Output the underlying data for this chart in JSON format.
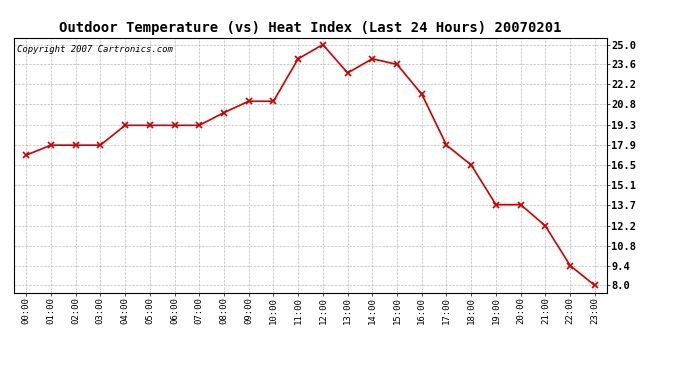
{
  "title": "Outdoor Temperature (vs) Heat Index (Last 24 Hours) 20070201",
  "copyright": "Copyright 2007 Cartronics.com",
  "x_labels": [
    "00:00",
    "01:00",
    "02:00",
    "03:00",
    "04:00",
    "05:00",
    "06:00",
    "07:00",
    "08:00",
    "09:00",
    "10:00",
    "11:00",
    "12:00",
    "13:00",
    "14:00",
    "15:00",
    "16:00",
    "17:00",
    "18:00",
    "19:00",
    "20:00",
    "21:00",
    "22:00",
    "23:00"
  ],
  "y_values": [
    17.2,
    17.9,
    17.9,
    17.9,
    19.3,
    19.3,
    19.3,
    19.3,
    20.2,
    21.0,
    21.0,
    24.0,
    25.0,
    23.0,
    24.0,
    23.6,
    21.5,
    17.9,
    16.5,
    13.7,
    13.7,
    12.2,
    9.4,
    8.0
  ],
  "line_color": "#cc0000",
  "marker": "x",
  "marker_color": "#cc0000",
  "background_color": "#ffffff",
  "grid_color": "#aaaaaa",
  "yticks": [
    8.0,
    9.4,
    10.8,
    12.2,
    13.7,
    15.1,
    16.5,
    17.9,
    19.3,
    20.8,
    22.2,
    23.6,
    25.0
  ],
  "ylim": [
    7.5,
    25.5
  ],
  "title_fontsize": 10,
  "copyright_fontsize": 6.5,
  "tick_fontsize": 6.5,
  "ytick_fontsize": 7.5
}
